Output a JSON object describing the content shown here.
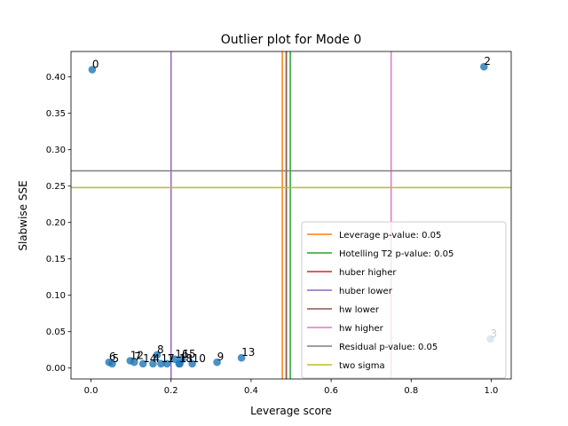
{
  "chart_data": {
    "type": "scatter",
    "title": "Outlier plot for Mode 0",
    "xlabel": "Leverage score",
    "ylabel": "Slabwise SSE",
    "xlim": [
      -0.05,
      1.05
    ],
    "ylim": [
      -0.015,
      0.435
    ],
    "xticks": [
      0.0,
      0.2,
      0.4,
      0.6,
      0.8,
      1.0
    ],
    "xtick_labels": [
      "0.0",
      "0.2",
      "0.4",
      "0.6",
      "0.8",
      "1.0"
    ],
    "yticks": [
      0.0,
      0.05,
      0.1,
      0.15,
      0.2,
      0.25,
      0.3,
      0.35,
      0.4
    ],
    "ytick_labels": [
      "0.00",
      "0.05",
      "0.10",
      "0.15",
      "0.20",
      "0.25",
      "0.30",
      "0.35",
      "0.40"
    ],
    "grid": false,
    "legend_position": "lower-right",
    "point_color": "#1f77b4",
    "points": [
      {
        "label": "0",
        "x": 0.003,
        "y": 0.41
      },
      {
        "label": "2",
        "x": 0.982,
        "y": 0.414
      },
      {
        "label": "3",
        "x": 0.998,
        "y": 0.04
      },
      {
        "label": "6",
        "x": 0.045,
        "y": 0.008
      },
      {
        "label": "5",
        "x": 0.053,
        "y": 0.006
      },
      {
        "label": "12",
        "x": 0.098,
        "y": 0.01
      },
      {
        "label": "7",
        "x": 0.108,
        "y": 0.008
      },
      {
        "label": "14",
        "x": 0.13,
        "y": 0.006
      },
      {
        "label": "8",
        "x": 0.165,
        "y": 0.018
      },
      {
        "label": "4",
        "x": 0.155,
        "y": 0.006
      },
      {
        "label": "17",
        "x": 0.175,
        "y": 0.006
      },
      {
        "label": "1",
        "x": 0.19,
        "y": 0.006
      },
      {
        "label": "16",
        "x": 0.21,
        "y": 0.012
      },
      {
        "label": "11",
        "x": 0.222,
        "y": 0.006
      },
      {
        "label": "15",
        "x": 0.228,
        "y": 0.012
      },
      {
        "label": "18",
        "x": 0.22,
        "y": 0.006
      },
      {
        "label": "10",
        "x": 0.253,
        "y": 0.006
      },
      {
        "label": "9",
        "x": 0.315,
        "y": 0.008
      },
      {
        "label": "13",
        "x": 0.376,
        "y": 0.014
      }
    ],
    "vlines": [
      {
        "name": "Leverage p-value: 0.05",
        "x": 0.478,
        "color": "#ff7f0e"
      },
      {
        "name": "Hotelling T2 p-value: 0.05",
        "x": 0.498,
        "color": "#2ca02c"
      },
      {
        "name": "huber higher",
        "x": 0.488,
        "color": "#d62728"
      },
      {
        "name": "huber lower",
        "x": 0.2,
        "color": "#9467bd"
      },
      {
        "name": "hw lower",
        "x": 0.488,
        "color": "#8c564b"
      },
      {
        "name": "hw higher",
        "x": 0.75,
        "color": "#e377c2"
      }
    ],
    "hlines": [
      {
        "name": "Residual p-value: 0.05",
        "y": 0.271,
        "color": "#7f7f7f"
      },
      {
        "name": "two sigma",
        "y": 0.248,
        "color": "#bcbd22"
      }
    ],
    "legend": [
      {
        "name": "Leverage p-value: 0.05",
        "color": "#ff7f0e"
      },
      {
        "name": "Hotelling T2 p-value: 0.05",
        "color": "#2ca02c"
      },
      {
        "name": "huber higher",
        "color": "#d62728"
      },
      {
        "name": "huber lower",
        "color": "#9467bd"
      },
      {
        "name": "hw lower",
        "color": "#8c564b"
      },
      {
        "name": "hw higher",
        "color": "#e377c2"
      },
      {
        "name": "Residual p-value: 0.05",
        "color": "#7f7f7f"
      },
      {
        "name": "two sigma",
        "color": "#bcbd22"
      }
    ]
  }
}
